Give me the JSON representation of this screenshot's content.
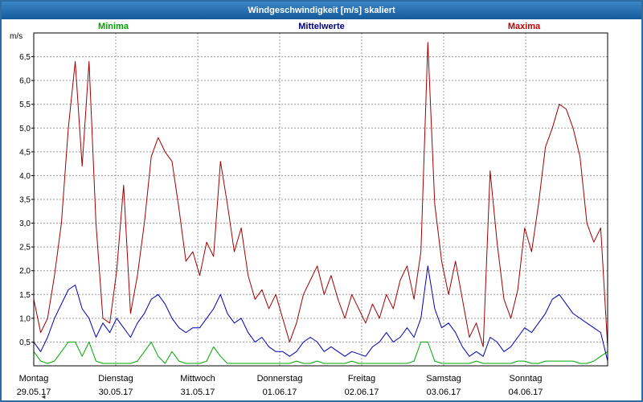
{
  "title": "Windgeschwindigkeit [m/s] skaliert",
  "legend": [
    {
      "label": "Minima",
      "color": "#00a000"
    },
    {
      "label": "Mittelwerte",
      "color": "#000080"
    },
    {
      "label": "Maxima",
      "color": "#c00000"
    }
  ],
  "scrollbar": {
    "left_arrow": "◄"
  },
  "chart_data": {
    "type": "line",
    "title": "Windgeschwindigkeit [m/s] skaliert",
    "xlabel": "",
    "ylabel": "m/s",
    "ylim": [
      0,
      7
    ],
    "grid": true,
    "legend_position": "top",
    "yticks": [
      "0,5",
      "1,0",
      "1,5",
      "2,0",
      "2,5",
      "3,0",
      "3,5",
      "4,0",
      "4,5",
      "5,0",
      "5,5",
      "6,0",
      "6,5"
    ],
    "days": [
      {
        "weekday": "Montag",
        "date": "29.05.17"
      },
      {
        "weekday": "Dienstag",
        "date": "30.05.17"
      },
      {
        "weekday": "Mittwoch",
        "date": "31.05.17"
      },
      {
        "weekday": "Donnerstag",
        "date": "01.06.17"
      },
      {
        "weekday": "Freitag",
        "date": "02.06.17"
      },
      {
        "weekday": "Samstag",
        "date": "03.06.17"
      },
      {
        "weekday": "Sonntag",
        "date": "04.06.17"
      }
    ],
    "points_per_day": 12,
    "series": [
      {
        "name": "Minima",
        "color": "#00a800",
        "values": [
          0.3,
          0.1,
          0.05,
          0.1,
          0.3,
          0.5,
          0.5,
          0.2,
          0.5,
          0.1,
          0.05,
          0.05,
          0.05,
          0.05,
          0.05,
          0.1,
          0.3,
          0.5,
          0.2,
          0.05,
          0.3,
          0.1,
          0.05,
          0.05,
          0.05,
          0.1,
          0.4,
          0.2,
          0.05,
          0.05,
          0.05,
          0.05,
          0.05,
          0.05,
          0.05,
          0.05,
          0.05,
          0.05,
          0.1,
          0.05,
          0.05,
          0.1,
          0.05,
          0.05,
          0.05,
          0.05,
          0.1,
          0.05,
          0.05,
          0.05,
          0.05,
          0.05,
          0.05,
          0.05,
          0.05,
          0.1,
          0.5,
          0.5,
          0.1,
          0.05,
          0.05,
          0.05,
          0.05,
          0.05,
          0.1,
          0.05,
          0.05,
          0.05,
          0.05,
          0.05,
          0.1,
          0.1,
          0.05,
          0.05,
          0.1,
          0.1,
          0.1,
          0.1,
          0.1,
          0.05,
          0.05,
          0.1,
          0.2,
          0.3
        ]
      },
      {
        "name": "Mittelwerte",
        "color": "#0000b4",
        "values": [
          0.5,
          0.3,
          0.6,
          1.0,
          1.3,
          1.6,
          1.7,
          1.2,
          1.0,
          0.6,
          0.9,
          0.7,
          1.0,
          0.8,
          0.6,
          0.9,
          1.1,
          1.4,
          1.5,
          1.3,
          1.0,
          0.8,
          0.7,
          0.8,
          0.8,
          1.0,
          1.2,
          1.5,
          1.1,
          0.9,
          1.0,
          0.7,
          0.5,
          0.6,
          0.4,
          0.3,
          0.3,
          0.2,
          0.3,
          0.5,
          0.6,
          0.5,
          0.3,
          0.4,
          0.3,
          0.2,
          0.3,
          0.25,
          0.2,
          0.4,
          0.5,
          0.7,
          0.5,
          0.6,
          0.8,
          0.6,
          1.0,
          2.1,
          1.2,
          0.8,
          0.9,
          0.7,
          0.4,
          0.2,
          0.3,
          0.2,
          0.6,
          0.5,
          0.3,
          0.4,
          0.6,
          0.8,
          0.7,
          0.9,
          1.1,
          1.4,
          1.5,
          1.3,
          1.1,
          1.0,
          0.9,
          0.8,
          0.7,
          0.1
        ]
      },
      {
        "name": "Maxima",
        "color": "#a00000",
        "values": [
          1.4,
          0.7,
          1.0,
          1.9,
          3.0,
          5.0,
          6.4,
          4.2,
          6.4,
          3.0,
          1.0,
          0.9,
          2.0,
          3.8,
          1.1,
          1.9,
          3.0,
          4.4,
          4.8,
          4.5,
          4.3,
          3.3,
          2.2,
          2.4,
          1.9,
          2.6,
          2.3,
          4.3,
          3.4,
          2.4,
          2.9,
          1.9,
          1.4,
          1.6,
          1.2,
          1.5,
          1.0,
          0.5,
          0.9,
          1.5,
          1.8,
          2.1,
          1.5,
          1.9,
          1.4,
          1.0,
          1.5,
          1.2,
          0.9,
          1.3,
          1.0,
          1.5,
          1.2,
          1.8,
          2.1,
          1.4,
          2.4,
          6.8,
          3.4,
          2.2,
          1.5,
          2.2,
          1.4,
          0.6,
          0.9,
          0.4,
          4.1,
          2.6,
          1.4,
          1.0,
          1.6,
          2.9,
          2.4,
          3.4,
          4.6,
          5.0,
          5.5,
          5.4,
          5.0,
          4.4,
          3.0,
          2.6,
          2.9,
          0.4
        ]
      }
    ]
  }
}
